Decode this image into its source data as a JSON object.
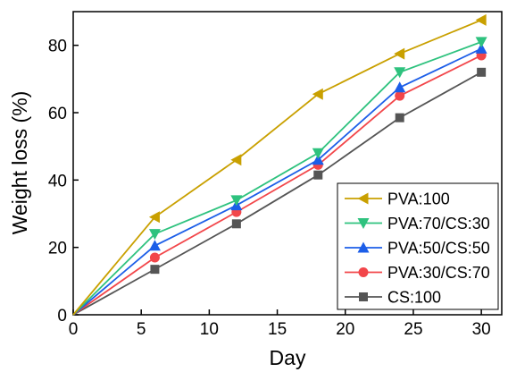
{
  "chart_data": {
    "type": "line",
    "title": "",
    "xlabel": "Day",
    "ylabel": "Weight loss (%)",
    "xlim": [
      0,
      31.5
    ],
    "ylim": [
      0,
      90
    ],
    "xticks": [
      0,
      5,
      10,
      15,
      20,
      25,
      30
    ],
    "yticks": [
      0,
      20,
      40,
      60,
      80
    ],
    "x": [
      0,
      6,
      12,
      18,
      24,
      30
    ],
    "grid": false,
    "legend_position": "bottom-right",
    "series": [
      {
        "name": "PVA:100",
        "marker": "triangle-left",
        "color": "#c9a000",
        "values": [
          0,
          29,
          46,
          65.5,
          77.5,
          87.5
        ]
      },
      {
        "name": "PVA:70/CS:30",
        "marker": "triangle-down",
        "color": "#2ec27e",
        "values": [
          0,
          24,
          34,
          48,
          72,
          81
        ]
      },
      {
        "name": "PVA:50/CS:50",
        "marker": "triangle-up",
        "color": "#1c5ee8",
        "values": [
          0,
          20.5,
          32.5,
          46,
          67.5,
          79
        ]
      },
      {
        "name": "PVA:30/CS:70",
        "marker": "circle",
        "color": "#f2464a",
        "values": [
          0,
          17,
          30.5,
          44.5,
          65,
          77
        ]
      },
      {
        "name": "CS:100",
        "marker": "square",
        "color": "#555555",
        "values": [
          0,
          13.5,
          27,
          41.5,
          58.5,
          72
        ]
      }
    ]
  }
}
